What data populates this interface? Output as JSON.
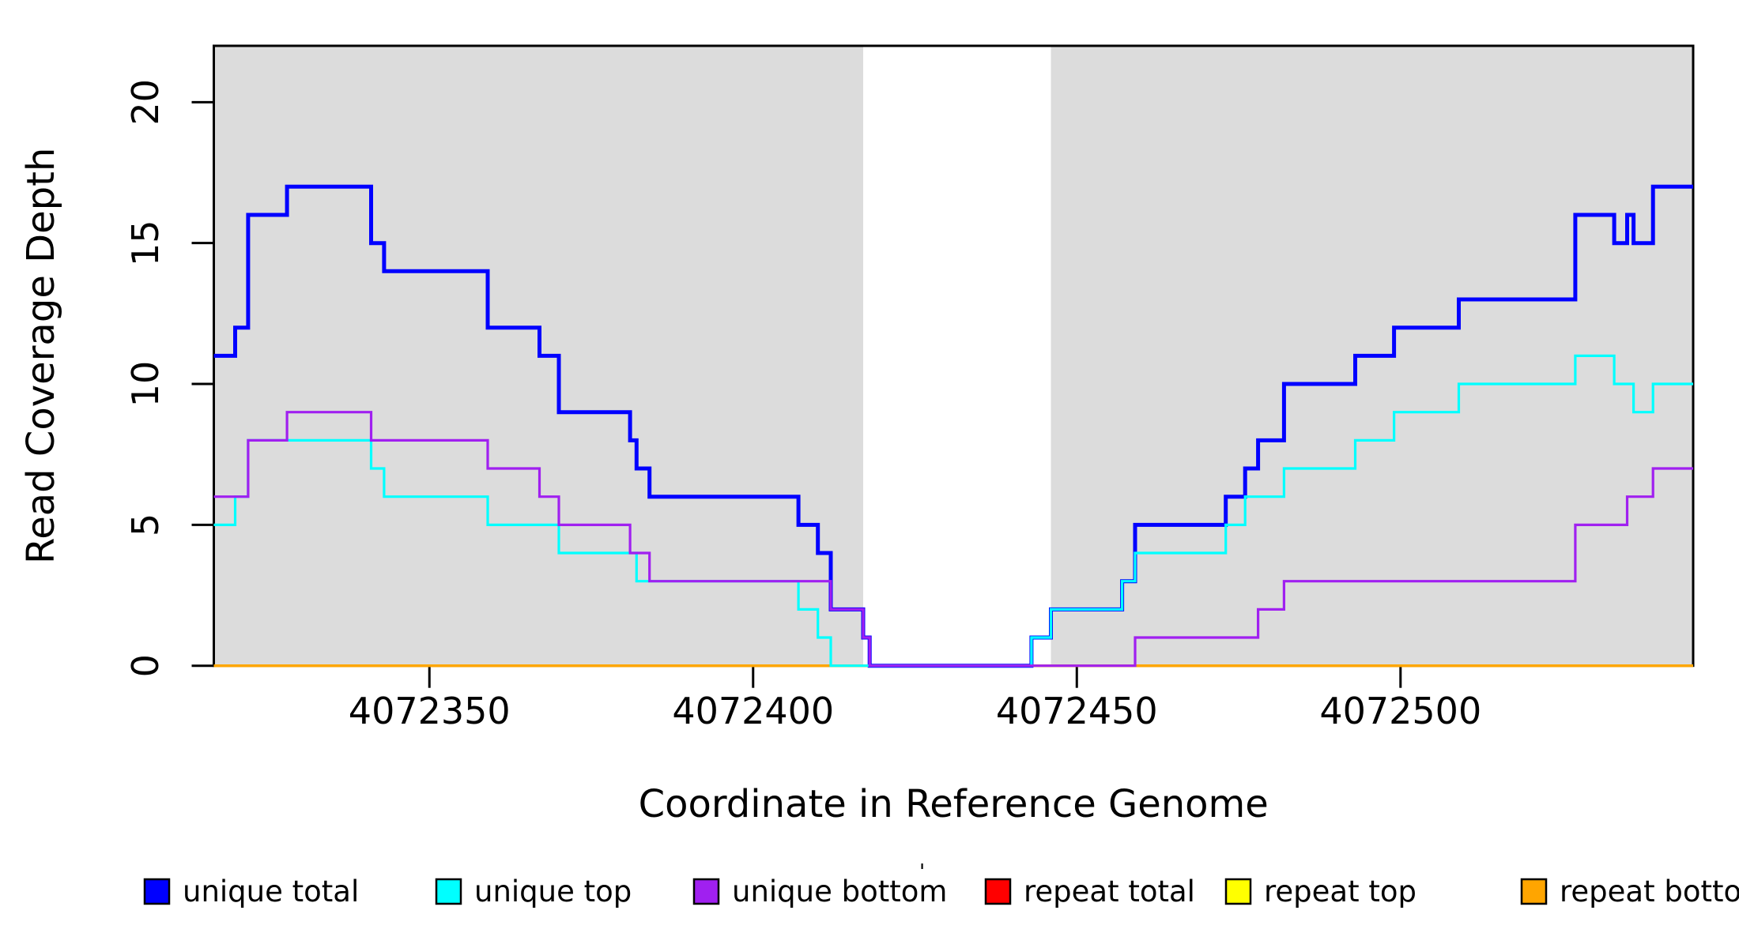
{
  "chart_data": {
    "type": "line",
    "subtype": "step",
    "title": "",
    "xlabel": "Coordinate in Reference Genome",
    "ylabel": "Read Coverage Depth",
    "xlim": [
      4072316.7,
      4072545.2
    ],
    "ylim": [
      0,
      22
    ],
    "grid": false,
    "legend_position": "bottom-horizontal",
    "x_ticks": [
      {
        "value": 4072350,
        "label": "4072350"
      },
      {
        "value": 4072400,
        "label": "4072400"
      },
      {
        "value": 4072450,
        "label": "4072450"
      },
      {
        "value": 4072500,
        "label": "4072500"
      }
    ],
    "y_ticks": [
      {
        "value": 0,
        "label": "0"
      },
      {
        "value": 5,
        "label": "5"
      },
      {
        "value": 10,
        "label": "10"
      },
      {
        "value": 15,
        "label": "15"
      },
      {
        "value": 20,
        "label": "20"
      }
    ],
    "shaded_regions": [
      {
        "x0": 4072316.7,
        "x1": 4072417,
        "color": "#DCDCDC"
      },
      {
        "x0": 4072446,
        "x1": 4072545.2,
        "color": "#DCDCDC"
      }
    ],
    "draw_order": [
      "repeat total",
      "repeat top",
      "repeat bottom",
      "unique total",
      "unique top",
      "unique bottom"
    ],
    "series": [
      {
        "name": "unique total",
        "color": "#0000FF",
        "thick": true,
        "points": [
          [
            4072316.7,
            11
          ],
          [
            4072320,
            12
          ],
          [
            4072322,
            16
          ],
          [
            4072328,
            17
          ],
          [
            4072341,
            15
          ],
          [
            4072343,
            14
          ],
          [
            4072359,
            12
          ],
          [
            4072367,
            11
          ],
          [
            4072370,
            9
          ],
          [
            4072381,
            8
          ],
          [
            4072382,
            7
          ],
          [
            4072384,
            6
          ],
          [
            4072407,
            5
          ],
          [
            4072410,
            4
          ],
          [
            4072412,
            2
          ],
          [
            4072417,
            1
          ],
          [
            4072418,
            0
          ],
          [
            4072443,
            1
          ],
          [
            4072446,
            2
          ],
          [
            4072457,
            3
          ],
          [
            4072459,
            5
          ],
          [
            4072473,
            6
          ],
          [
            4072476,
            7
          ],
          [
            4072478,
            8
          ],
          [
            4072482,
            10
          ],
          [
            4072493,
            11
          ],
          [
            4072499,
            12
          ],
          [
            4072509,
            13
          ],
          [
            4072527,
            16
          ],
          [
            4072533,
            15
          ],
          [
            4072535,
            16
          ],
          [
            4072536,
            15
          ],
          [
            4072539,
            17
          ]
        ]
      },
      {
        "name": "unique top",
        "color": "#00FFFF",
        "thick": false,
        "points": [
          [
            4072316.7,
            5
          ],
          [
            4072320,
            6
          ],
          [
            4072322,
            8
          ],
          [
            4072341,
            7
          ],
          [
            4072343,
            6
          ],
          [
            4072359,
            5
          ],
          [
            4072370,
            4
          ],
          [
            4072382,
            3
          ],
          [
            4072407,
            2
          ],
          [
            4072410,
            1
          ],
          [
            4072412,
            0
          ],
          [
            4072443,
            1
          ],
          [
            4072446,
            2
          ],
          [
            4072457,
            3
          ],
          [
            4072459,
            4
          ],
          [
            4072473,
            5
          ],
          [
            4072476,
            6
          ],
          [
            4072482,
            7
          ],
          [
            4072493,
            8
          ],
          [
            4072499,
            9
          ],
          [
            4072509,
            10
          ],
          [
            4072527,
            11
          ],
          [
            4072533,
            10
          ],
          [
            4072536,
            9
          ],
          [
            4072539,
            10
          ]
        ]
      },
      {
        "name": "unique bottom",
        "color": "#A020F0",
        "thick": false,
        "points": [
          [
            4072316.7,
            6
          ],
          [
            4072322,
            8
          ],
          [
            4072328,
            9
          ],
          [
            4072341,
            8
          ],
          [
            4072359,
            7
          ],
          [
            4072367,
            6
          ],
          [
            4072370,
            5
          ],
          [
            4072381,
            4
          ],
          [
            4072384,
            3
          ],
          [
            4072412,
            2
          ],
          [
            4072417,
            1
          ],
          [
            4072418,
            0
          ],
          [
            4072459,
            1
          ],
          [
            4072478,
            2
          ],
          [
            4072482,
            3
          ],
          [
            4072527,
            5
          ],
          [
            4072535,
            6
          ],
          [
            4072539,
            7
          ]
        ]
      },
      {
        "name": "repeat total",
        "color": "#FF0000",
        "thick": false,
        "points": [
          [
            4072316.7,
            0
          ]
        ]
      },
      {
        "name": "repeat top",
        "color": "#FFFF00",
        "thick": false,
        "points": [
          [
            4072316.7,
            0
          ]
        ]
      },
      {
        "name": "repeat bottom",
        "color": "#FFA500",
        "thick": false,
        "points": [
          [
            4072316.7,
            0
          ]
        ]
      }
    ],
    "legend": [
      {
        "label": "unique total",
        "color": "#0000FF"
      },
      {
        "label": "unique top",
        "color": "#00FFFF"
      },
      {
        "label": "unique bottom",
        "color": "#A020F0"
      },
      {
        "label": "repeat total",
        "color": "#FF0000"
      },
      {
        "label": "repeat top",
        "color": "#FFFF00"
      },
      {
        "label": "repeat bottom",
        "color": "#FFA500"
      }
    ],
    "stray_mark": "'"
  }
}
